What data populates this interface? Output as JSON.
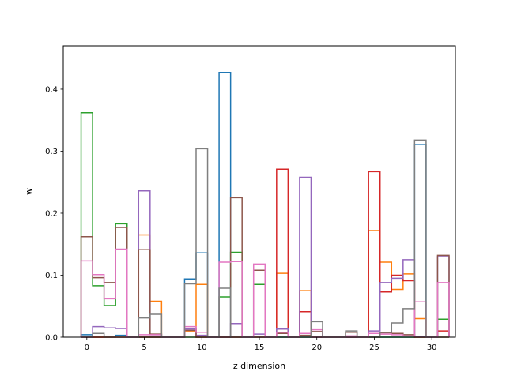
{
  "chart_data": {
    "type": "bar",
    "style": "step-histogram",
    "title": "",
    "xlabel": "z dimension",
    "ylabel": "w",
    "xlim": [
      -2.05,
      32.05
    ],
    "ylim": [
      0,
      0.47
    ],
    "xticks": [
      0,
      5,
      10,
      15,
      20,
      25,
      30
    ],
    "yticks": [
      0.0,
      0.1,
      0.2,
      0.3,
      0.4
    ],
    "ytick_labels": [
      "0.0",
      "0.1",
      "0.2",
      "0.3",
      "0.4"
    ],
    "grid": false,
    "legend": "none",
    "x": [
      0,
      1,
      2,
      3,
      4,
      5,
      6,
      7,
      8,
      9,
      10,
      11,
      12,
      13,
      14,
      15,
      16,
      17,
      18,
      19,
      20,
      21,
      22,
      23,
      24,
      25,
      26,
      27,
      28,
      29,
      30,
      31
    ],
    "series": [
      {
        "color": "#1f77b4",
        "values": [
          0.004,
          0,
          0,
          0.003,
          0,
          0,
          0,
          0,
          0,
          0.094,
          0.136,
          0,
          0.427,
          0,
          0,
          0,
          0,
          0,
          0,
          0,
          0,
          0,
          0,
          0,
          0,
          0,
          0,
          0,
          0,
          0.311,
          0,
          0
        ]
      },
      {
        "color": "#ff7f0e",
        "values": [
          0,
          0,
          0,
          0,
          0,
          0.165,
          0.058,
          0,
          0,
          0.009,
          0.085,
          0,
          0,
          0,
          0,
          0,
          0,
          0.103,
          0,
          0.075,
          0,
          0,
          0,
          0,
          0,
          0.172,
          0.121,
          0.077,
          0.102,
          0.03,
          0,
          0
        ]
      },
      {
        "color": "#2ca02c",
        "values": [
          0.362,
          0.083,
          0.051,
          0.183,
          0,
          0,
          0,
          0,
          0,
          0,
          0,
          0,
          0.065,
          0.137,
          0,
          0.085,
          0,
          0,
          0,
          0,
          0,
          0,
          0,
          0,
          0,
          0,
          0,
          0,
          0,
          0,
          0,
          0.029
        ]
      },
      {
        "color": "#d62728",
        "values": [
          0,
          0,
          0,
          0,
          0,
          0,
          0,
          0,
          0,
          0.013,
          0,
          0,
          0,
          0,
          0,
          0,
          0,
          0.271,
          0,
          0.041,
          0,
          0,
          0,
          0,
          0,
          0.267,
          0.073,
          0.1,
          0.091,
          0,
          0,
          0.01
        ]
      },
      {
        "color": "#9467bd",
        "values": [
          0,
          0.017,
          0.015,
          0.014,
          0,
          0.236,
          0.004,
          0,
          0,
          0.013,
          0.003,
          0,
          0,
          0.022,
          0,
          0.005,
          0,
          0.013,
          0,
          0.258,
          0,
          0,
          0,
          0,
          0,
          0.01,
          0.088,
          0.095,
          0.125,
          0.001,
          0,
          0.13
        ]
      },
      {
        "color": "#8c564b",
        "values": [
          0.162,
          0.096,
          0.088,
          0.177,
          0,
          0.141,
          0.005,
          0,
          0,
          0.011,
          0,
          0,
          0,
          0.225,
          0,
          0.108,
          0,
          0.006,
          0,
          0.003,
          0.009,
          0,
          0,
          0.008,
          0,
          0,
          0.007,
          0.006,
          0.004,
          0,
          0,
          0.132
        ]
      },
      {
        "color": "#e377c2",
        "values": [
          0.123,
          0.101,
          0.062,
          0.142,
          0,
          0.004,
          0.004,
          0,
          0,
          0.017,
          0.008,
          0,
          0.121,
          0.122,
          0,
          0.118,
          0,
          0.008,
          0,
          0.006,
          0.012,
          0,
          0,
          0.002,
          0,
          0.006,
          0.005,
          0.004,
          0.002,
          0.057,
          0,
          0.088
        ]
      },
      {
        "color": "#7f7f7f",
        "values": [
          0,
          0.006,
          0,
          0,
          0,
          0.031,
          0.037,
          0,
          0,
          0.086,
          0.304,
          0,
          0.079,
          0,
          0,
          0,
          0,
          0,
          0,
          0,
          0.025,
          0,
          0,
          0.01,
          0,
          0,
          0.008,
          0.023,
          0.046,
          0.318,
          0,
          0
        ]
      }
    ]
  }
}
